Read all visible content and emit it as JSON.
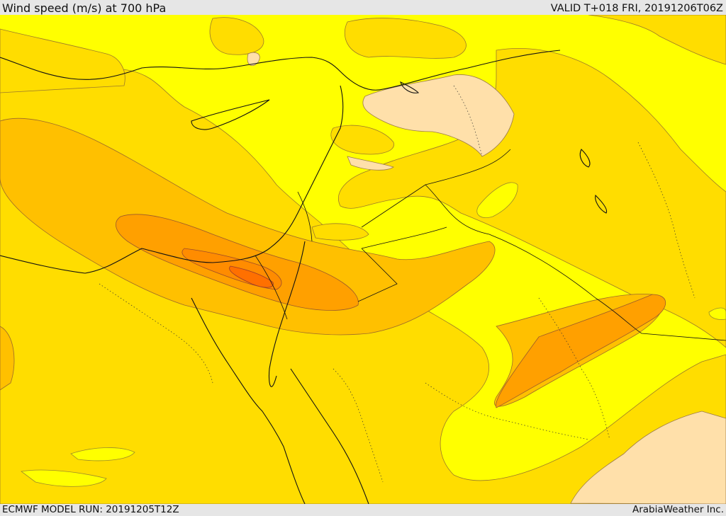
{
  "header": {
    "title": "Wind speed (m/s) at 700 hPa",
    "valid": "VALID T+018 FRI, 20191206T06Z"
  },
  "footer": {
    "model_run": "ECMWF MODEL RUN: 20191205T12Z",
    "credit": "ArabiaWeather Inc."
  },
  "colors": {
    "band_lightest": "#ffff00",
    "band_light": "#ffdd00",
    "band_mid": "#ffc000",
    "band_strong": "#ffa000",
    "band_stronger": "#ff8c00",
    "band_max": "#ff7000",
    "calm": "#ffe0aa"
  }
}
